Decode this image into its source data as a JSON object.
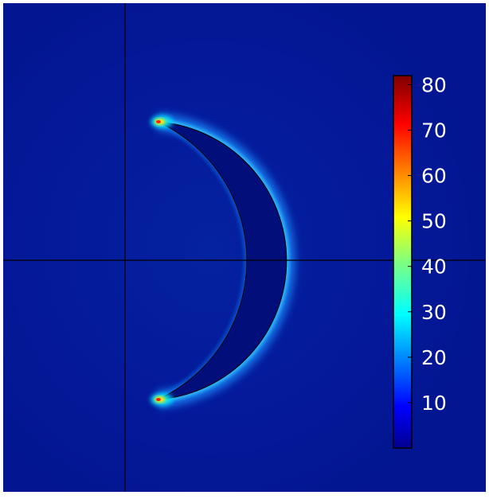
{
  "colorbar": {
    "colormap": "jet",
    "range": [
      0,
      82
    ],
    "ticks": [
      "10",
      "20",
      "30",
      "40",
      "50",
      "60",
      "70",
      "80"
    ]
  },
  "colors": {
    "background_field": "#051a8c",
    "crescent_fill": "#020f78",
    "axis_lines": "#000000",
    "tick_label_color": "#ffffff"
  },
  "shape": "crescent"
}
